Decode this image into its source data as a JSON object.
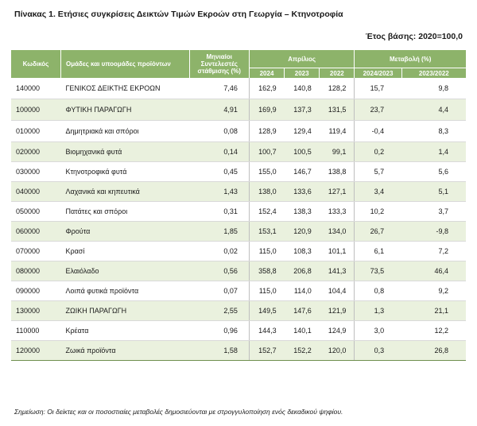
{
  "title": "Πίνακας 1. Ετήσιες συγκρίσεις Δεικτών Τιμών Εκροών στη Γεωργία – Κτηνοτροφία",
  "base_year": "Έτος βάσης: 2020=100,0",
  "header": {
    "code": "Κωδικός",
    "groups": "Ομάδες και υποομάδες προϊόντων",
    "weights": "Μηνιαίοι Συντελεστές στάθμισης (%)",
    "april": "Απρίλιος",
    "change": "Μεταβολή (%)",
    "y2024": "2024",
    "y2023": "2023",
    "y2022": "2022",
    "ch_2024_2023": "2024/2023",
    "ch_2023_2022": "2023/2022"
  },
  "rows": [
    {
      "code": "140000",
      "name": "ΓΕΝΙΚΟΣ ΔΕΙΚΤΗΣ ΕΚΡΟΩΝ",
      "weight": "7,46",
      "y2024": "162,9",
      "y2023": "140,8",
      "y2022": "128,2",
      "ch1": "15,7",
      "ch2": "9,8"
    },
    {
      "code": "100000",
      "name": "ΦΥΤΙΚΗ ΠΑΡΑΓΩΓΗ",
      "weight": "4,91",
      "y2024": "169,9",
      "y2023": "137,3",
      "y2022": "131,5",
      "ch1": "23,7",
      "ch2": "4,4"
    },
    {
      "code": "010000",
      "name": "Δημητριακά και σπόροι",
      "weight": "0,08",
      "y2024": "128,9",
      "y2023": "129,4",
      "y2022": "119,4",
      "ch1": "-0,4",
      "ch2": "8,3"
    },
    {
      "code": "020000",
      "name": "Βιομηχανικά φυτά",
      "weight": "0,14",
      "y2024": "100,7",
      "y2023": "100,5",
      "y2022": "99,1",
      "ch1": "0,2",
      "ch2": "1,4"
    },
    {
      "code": "030000",
      "name": "Κτηνοτροφικά φυτά",
      "weight": "0,45",
      "y2024": "155,0",
      "y2023": "146,7",
      "y2022": "138,8",
      "ch1": "5,7",
      "ch2": "5,6"
    },
    {
      "code": "040000",
      "name": "Λαχανικά και κηπευτικά",
      "weight": "1,43",
      "y2024": "138,0",
      "y2023": "133,6",
      "y2022": "127,1",
      "ch1": "3,4",
      "ch2": "5,1"
    },
    {
      "code": "050000",
      "name": "Πατάτες και σπόροι",
      "weight": "0,31",
      "y2024": "152,4",
      "y2023": "138,3",
      "y2022": "133,3",
      "ch1": "10,2",
      "ch2": "3,7"
    },
    {
      "code": "060000",
      "name": "Φρούτα",
      "weight": "1,85",
      "y2024": "153,1",
      "y2023": "120,9",
      "y2022": "134,0",
      "ch1": "26,7",
      "ch2": "-9,8"
    },
    {
      "code": "070000",
      "name": "Κρασί",
      "weight": "0,02",
      "y2024": "115,0",
      "y2023": "108,3",
      "y2022": "101,1",
      "ch1": "6,1",
      "ch2": "7,2"
    },
    {
      "code": "080000",
      "name": "Ελαιόλαδο",
      "weight": "0,56",
      "y2024": "358,8",
      "y2023": "206,8",
      "y2022": "141,3",
      "ch1": "73,5",
      "ch2": "46,4"
    },
    {
      "code": "090000",
      "name": "Λοιπά φυτικά προϊόντα",
      "weight": "0,07",
      "y2024": "115,0",
      "y2023": "114,0",
      "y2022": "104,4",
      "ch1": "0,8",
      "ch2": "9,2"
    },
    {
      "code": "130000",
      "name": "ΖΩΙΚΗ ΠΑΡΑΓΩΓΗ",
      "weight": "2,55",
      "y2024": "149,5",
      "y2023": "147,6",
      "y2022": "121,9",
      "ch1": "1,3",
      "ch2": "21,1"
    },
    {
      "code": "110000",
      "name": "Κρέατα",
      "weight": "0,96",
      "y2024": "144,3",
      "y2023": "140,1",
      "y2022": "124,9",
      "ch1": "3,0",
      "ch2": "12,2"
    },
    {
      "code": "120000",
      "name": "Ζωικά προϊόντα",
      "weight": "1,58",
      "y2024": "152,7",
      "y2023": "152,2",
      "y2022": "120,0",
      "ch1": "0,3",
      "ch2": "26,8"
    }
  ],
  "footnote": "Σημείωση: Οι δείκτες και οι ποσοστιαίες μεταβολές δημοσιεύονται με στρογγυλοποίηση ενός δεκαδικού ψηφίου."
}
